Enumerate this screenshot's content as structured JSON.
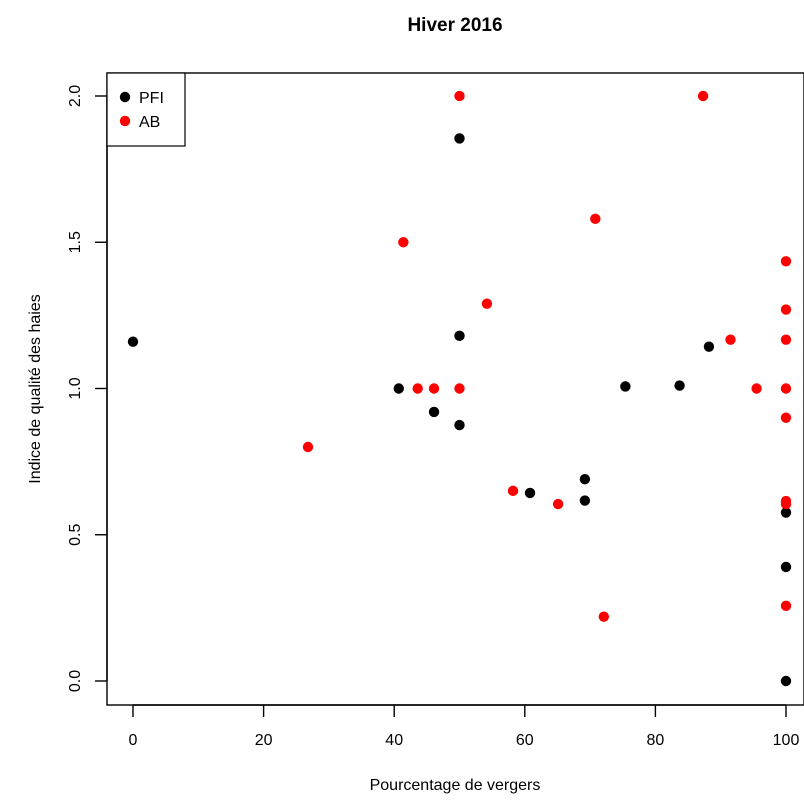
{
  "chart_data": {
    "type": "scatter",
    "title": "Hiver 2016",
    "xlabel": "Pourcentage de vergers",
    "ylabel": "Indice de qualité des haies",
    "xlim": [
      0,
      100
    ],
    "ylim": [
      0,
      2
    ],
    "xticks": [
      "0",
      "20",
      "40",
      "60",
      "80",
      "100"
    ],
    "yticks": [
      "0.0",
      "0.5",
      "1.0",
      "1.5",
      "2.0"
    ],
    "grid": false,
    "legend_position": "top-left",
    "series": [
      {
        "name": "PFI",
        "color": "#000000",
        "points": [
          [
            0,
            1.16
          ],
          [
            40.7,
            1.0
          ],
          [
            46.1,
            0.92
          ],
          [
            50.0,
            1.855
          ],
          [
            50.0,
            1.18
          ],
          [
            50.0,
            0.875
          ],
          [
            60.8,
            0.643
          ],
          [
            69.2,
            0.69
          ],
          [
            69.2,
            0.617
          ],
          [
            75.4,
            1.007
          ],
          [
            83.7,
            1.01
          ],
          [
            88.2,
            1.143
          ],
          [
            100,
            0.576
          ],
          [
            100,
            0.39
          ],
          [
            100,
            0.0
          ]
        ]
      },
      {
        "name": "AB",
        "color": "#ff0000",
        "points": [
          [
            26.8,
            0.8
          ],
          [
            41.4,
            1.5
          ],
          [
            43.6,
            1.0
          ],
          [
            46.1,
            1.0
          ],
          [
            50.0,
            2.0
          ],
          [
            50.0,
            1.0
          ],
          [
            54.2,
            1.29
          ],
          [
            58.2,
            0.65
          ],
          [
            65.1,
            0.605
          ],
          [
            70.8,
            1.58
          ],
          [
            72.1,
            0.22
          ],
          [
            87.3,
            2.0
          ],
          [
            91.5,
            1.167
          ],
          [
            95.5,
            1.0
          ],
          [
            100,
            1.435
          ],
          [
            100,
            1.27
          ],
          [
            100,
            1.167
          ],
          [
            100,
            1.0
          ],
          [
            100,
            0.9
          ],
          [
            100,
            0.615
          ],
          [
            100,
            0.605
          ],
          [
            100,
            0.257
          ]
        ]
      }
    ]
  }
}
